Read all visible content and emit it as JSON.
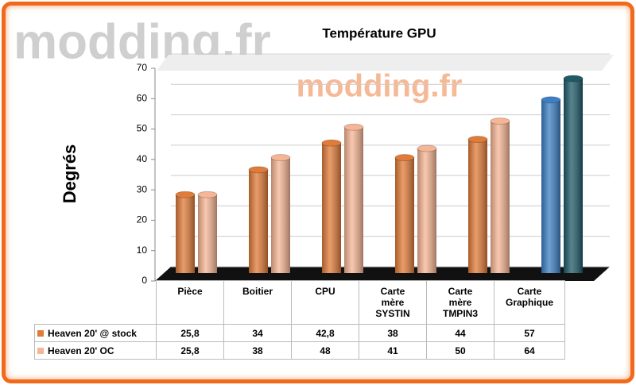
{
  "chart_data": {
    "type": "bar",
    "title": "Température GPU",
    "ylabel": "Degrés",
    "watermark": "modding.fr",
    "categories": [
      "Pièce",
      "Boitier",
      "CPU",
      "Carte mère SYSTIN",
      "Carte mère TMPIN3",
      "Carte Graphique"
    ],
    "series": [
      {
        "name": "Heaven 20' @ stock",
        "color": "#e07b39",
        "colors": [
          "#e07b39",
          "#e07b39",
          "#e07b39",
          "#e07b39",
          "#e07b39",
          "#3d7fc4"
        ],
        "values": [
          25.8,
          34,
          42.8,
          38,
          44,
          57
        ],
        "value_labels": [
          "25,8",
          "34",
          "42,8",
          "38",
          "44",
          "57"
        ]
      },
      {
        "name": "Heaven 20' OC",
        "color": "#f6b594",
        "colors": [
          "#f6b594",
          "#f6b594",
          "#f6b594",
          "#f6b594",
          "#f6b594",
          "#1f5a68"
        ],
        "values": [
          25.8,
          38,
          48,
          41,
          50,
          64
        ],
        "value_labels": [
          "25,8",
          "38",
          "48",
          "41",
          "50",
          "64"
        ]
      }
    ],
    "ylim": [
      0,
      70
    ],
    "yticks": [
      0,
      10,
      20,
      30,
      40,
      50,
      60,
      70
    ],
    "grid": true
  }
}
